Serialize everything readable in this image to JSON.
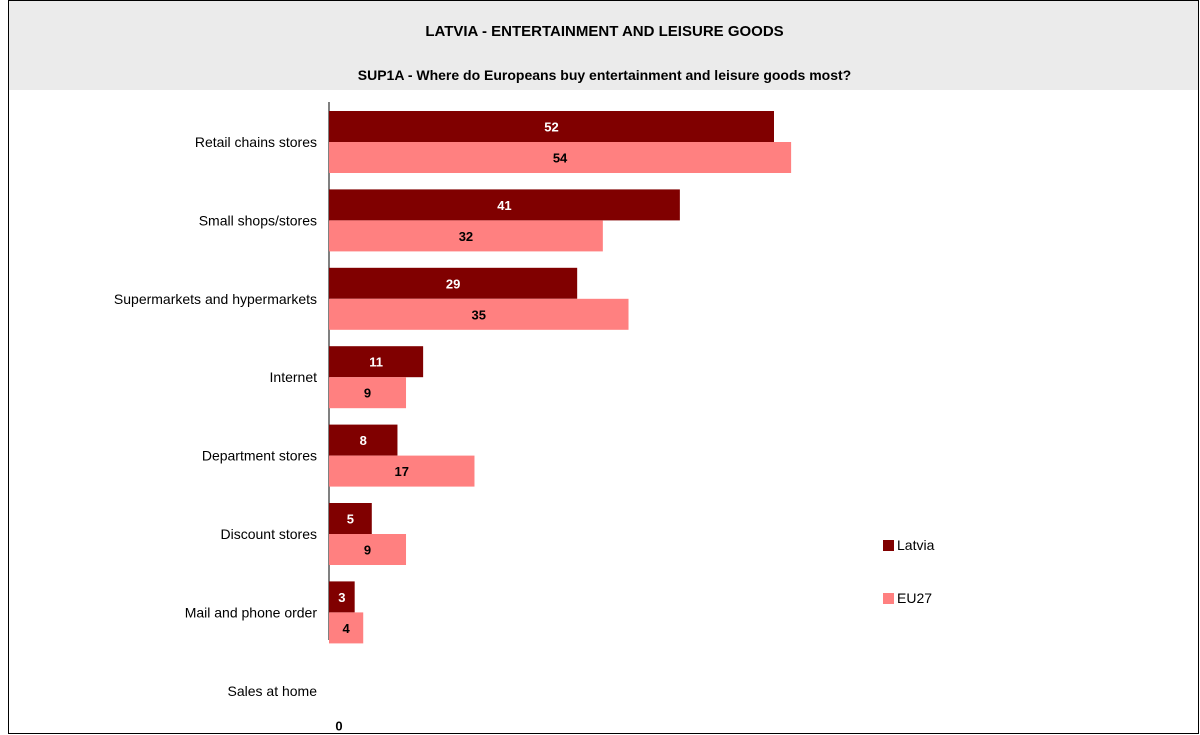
{
  "chart_data": {
    "type": "bar",
    "orientation": "horizontal",
    "title": "LATVIA - ENTERTAINMENT AND LEISURE GOODS",
    "subtitle": "SUP1A - Where do Europeans buy entertainment and leisure goods most?",
    "categories": [
      "Retail chains stores",
      "Small shops/stores",
      "Supermarkets and hypermarkets",
      "Internet",
      "Department stores",
      "Discount stores",
      "Mail and phone order",
      "Sales at home"
    ],
    "series": [
      {
        "name": "Latvia",
        "color": "#800000",
        "label_color": "#ffffff",
        "values": [
          52,
          41,
          29,
          11,
          8,
          5,
          3,
          0
        ]
      },
      {
        "name": "EU27",
        "color": "#ff8080",
        "label_color": "#000000",
        "values": [
          54,
          32,
          35,
          9,
          17,
          9,
          4,
          0
        ]
      }
    ],
    "data_labels_shown": [
      [
        "52",
        "41",
        "29",
        "11",
        "8",
        "5",
        "3",
        ""
      ],
      [
        "54",
        "32",
        "35",
        "9",
        "17",
        "9",
        "4",
        "0"
      ]
    ],
    "xlim": [
      0,
      100
    ],
    "grid": false,
    "legend_position": "right"
  }
}
